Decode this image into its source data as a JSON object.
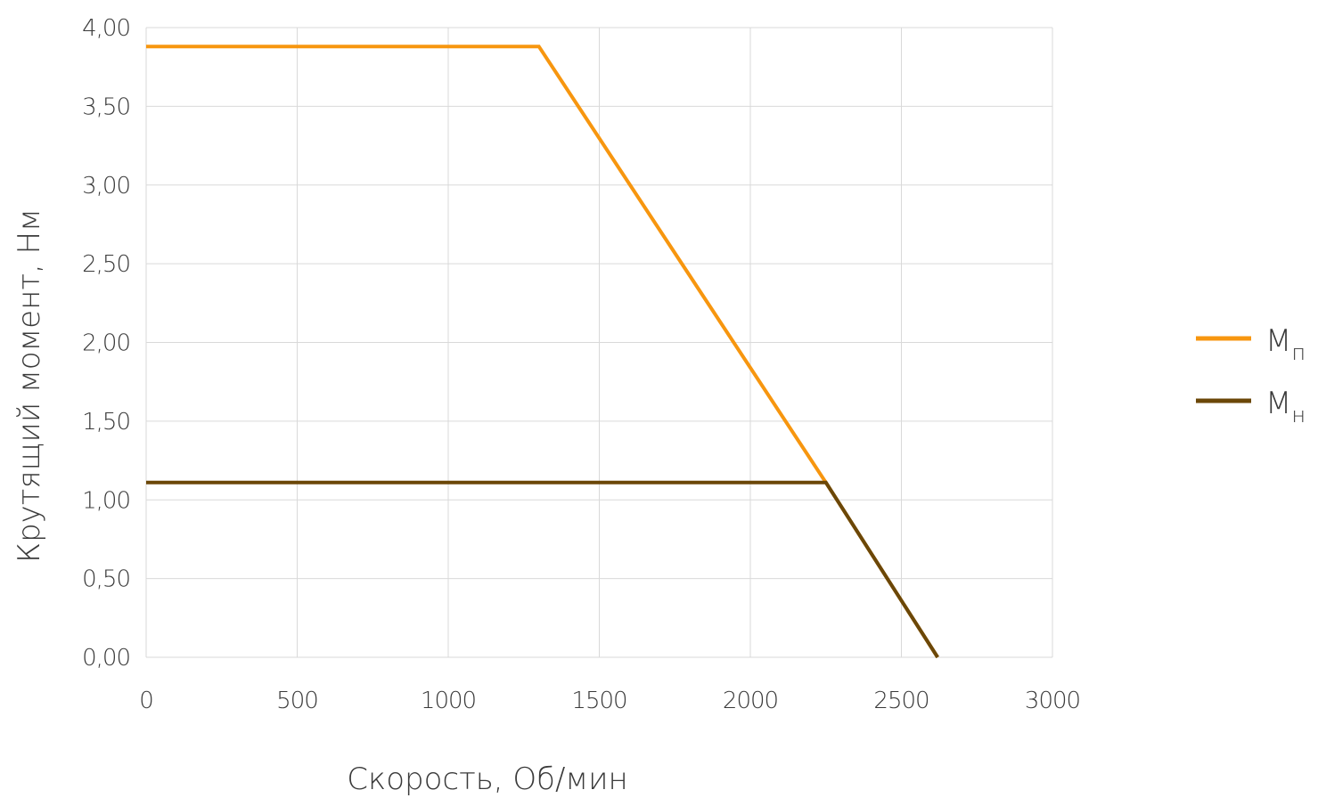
{
  "chart_data": {
    "type": "line",
    "xlabel": "Скорость, Об/мин",
    "ylabel": "Крутящий момент, Нм",
    "xlim": [
      0,
      3000
    ],
    "ylim": [
      0,
      4
    ],
    "x_ticks": [
      "0",
      "500",
      "1000",
      "1500",
      "2000",
      "2500",
      "3000"
    ],
    "y_ticks": [
      "0,00",
      "0,50",
      "1,00",
      "1,50",
      "2,00",
      "2,50",
      "3,00",
      "3,50",
      "4,00"
    ],
    "grid": true,
    "legend_position": "right",
    "series": [
      {
        "name": "Mп",
        "name_main": "M",
        "name_sub": "п",
        "color": "#f7960f",
        "points": [
          [
            0,
            3.88
          ],
          [
            1300,
            3.88
          ],
          [
            2250,
            1.11
          ],
          [
            2620,
            0
          ]
        ]
      },
      {
        "name": "Mн",
        "name_main": "M",
        "name_sub": "н",
        "color": "#6b4708",
        "points": [
          [
            0,
            1.11
          ],
          [
            2250,
            1.11
          ],
          [
            2620,
            0
          ]
        ]
      }
    ]
  }
}
